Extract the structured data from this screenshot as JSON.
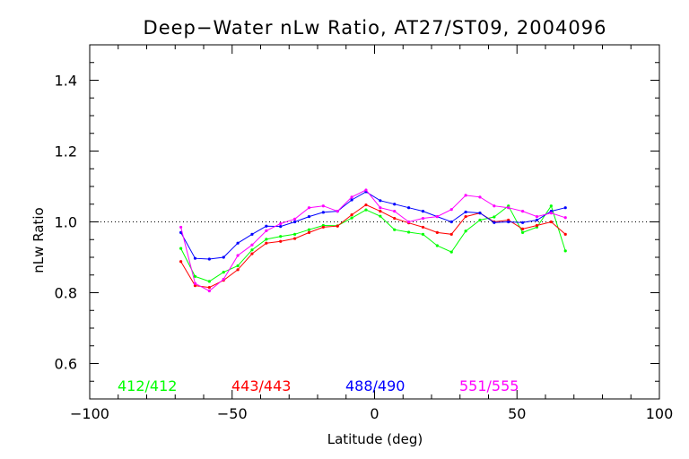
{
  "chart_data": {
    "type": "line",
    "title": "Deep−Water nLw Ratio, AT27/ST09, 2004096",
    "xlabel": "Latitude (deg)",
    "ylabel": "nLw Ratio",
    "xlim": [
      -100,
      100
    ],
    "ylim": [
      0.5,
      1.5
    ],
    "xticks": [
      -100,
      -50,
      0,
      50,
      100
    ],
    "xtick_labels": [
      "−100",
      "−50",
      "0",
      "50",
      "100"
    ],
    "yticks": [
      0.6,
      0.8,
      1.0,
      1.2,
      1.4
    ],
    "ytick_labels": [
      "0.6",
      "0.8",
      "1.0",
      "1.2",
      "1.4"
    ],
    "reference_line": 1.0,
    "grid": false,
    "legend_position": "bottom",
    "series": [
      {
        "name": "412/412",
        "color": "#00ff00",
        "x": [
          -68,
          -63,
          -58,
          -53,
          -48,
          -43,
          -38,
          -33,
          -28,
          -23,
          -18,
          -13,
          -8,
          -3,
          2,
          7,
          12,
          17,
          22,
          27,
          32,
          37,
          42,
          47,
          52,
          57,
          62,
          67
        ],
        "y": [
          0.925,
          0.846,
          0.832,
          0.858,
          0.876,
          0.921,
          0.951,
          0.959,
          0.965,
          0.978,
          0.99,
          0.989,
          1.011,
          1.034,
          1.016,
          0.978,
          0.971,
          0.965,
          0.933,
          0.915,
          0.974,
          1.005,
          1.014,
          1.045,
          0.97,
          0.985,
          1.045,
          0.918
        ]
      },
      {
        "name": "443/443",
        "color": "#ff0000",
        "x": [
          -68,
          -63,
          -58,
          -53,
          -48,
          -43,
          -38,
          -33,
          -28,
          -23,
          -18,
          -13,
          -8,
          -3,
          2,
          7,
          12,
          17,
          22,
          27,
          32,
          37,
          42,
          47,
          52,
          57,
          62,
          67
        ],
        "y": [
          0.888,
          0.82,
          0.815,
          0.835,
          0.865,
          0.91,
          0.94,
          0.945,
          0.953,
          0.97,
          0.985,
          0.988,
          1.02,
          1.048,
          1.03,
          1.01,
          0.997,
          0.985,
          0.97,
          0.965,
          1.015,
          1.025,
          1.0,
          1.005,
          0.98,
          0.99,
          1.0,
          0.965
        ]
      },
      {
        "name": "488/490",
        "color": "#0000ff",
        "x": [
          -68,
          -63,
          -58,
          -53,
          -48,
          -43,
          -38,
          -33,
          -28,
          -23,
          -18,
          -13,
          -8,
          -3,
          2,
          7,
          12,
          17,
          22,
          27,
          32,
          37,
          42,
          47,
          52,
          57,
          62,
          67
        ],
        "y": [
          0.97,
          0.897,
          0.895,
          0.9,
          0.94,
          0.965,
          0.988,
          0.987,
          1.0,
          1.015,
          1.027,
          1.03,
          1.062,
          1.085,
          1.06,
          1.05,
          1.04,
          1.03,
          1.015,
          1.0,
          1.028,
          1.025,
          0.998,
          1.0,
          0.998,
          1.005,
          1.03,
          1.04
        ]
      },
      {
        "name": "551/555",
        "color": "#ff00ff",
        "x": [
          -68,
          -63,
          -58,
          -53,
          -48,
          -43,
          -38,
          -33,
          -28,
          -23,
          -18,
          -13,
          -8,
          -3,
          2,
          7,
          12,
          17,
          22,
          27,
          32,
          37,
          42,
          47,
          52,
          57,
          62,
          67
        ],
        "y": [
          0.985,
          0.826,
          0.805,
          0.838,
          0.905,
          0.935,
          0.975,
          0.995,
          1.008,
          1.04,
          1.045,
          1.03,
          1.07,
          1.09,
          1.04,
          1.03,
          1.0,
          1.01,
          1.015,
          1.035,
          1.075,
          1.07,
          1.045,
          1.04,
          1.03,
          1.015,
          1.025,
          1.012
        ]
      }
    ]
  }
}
